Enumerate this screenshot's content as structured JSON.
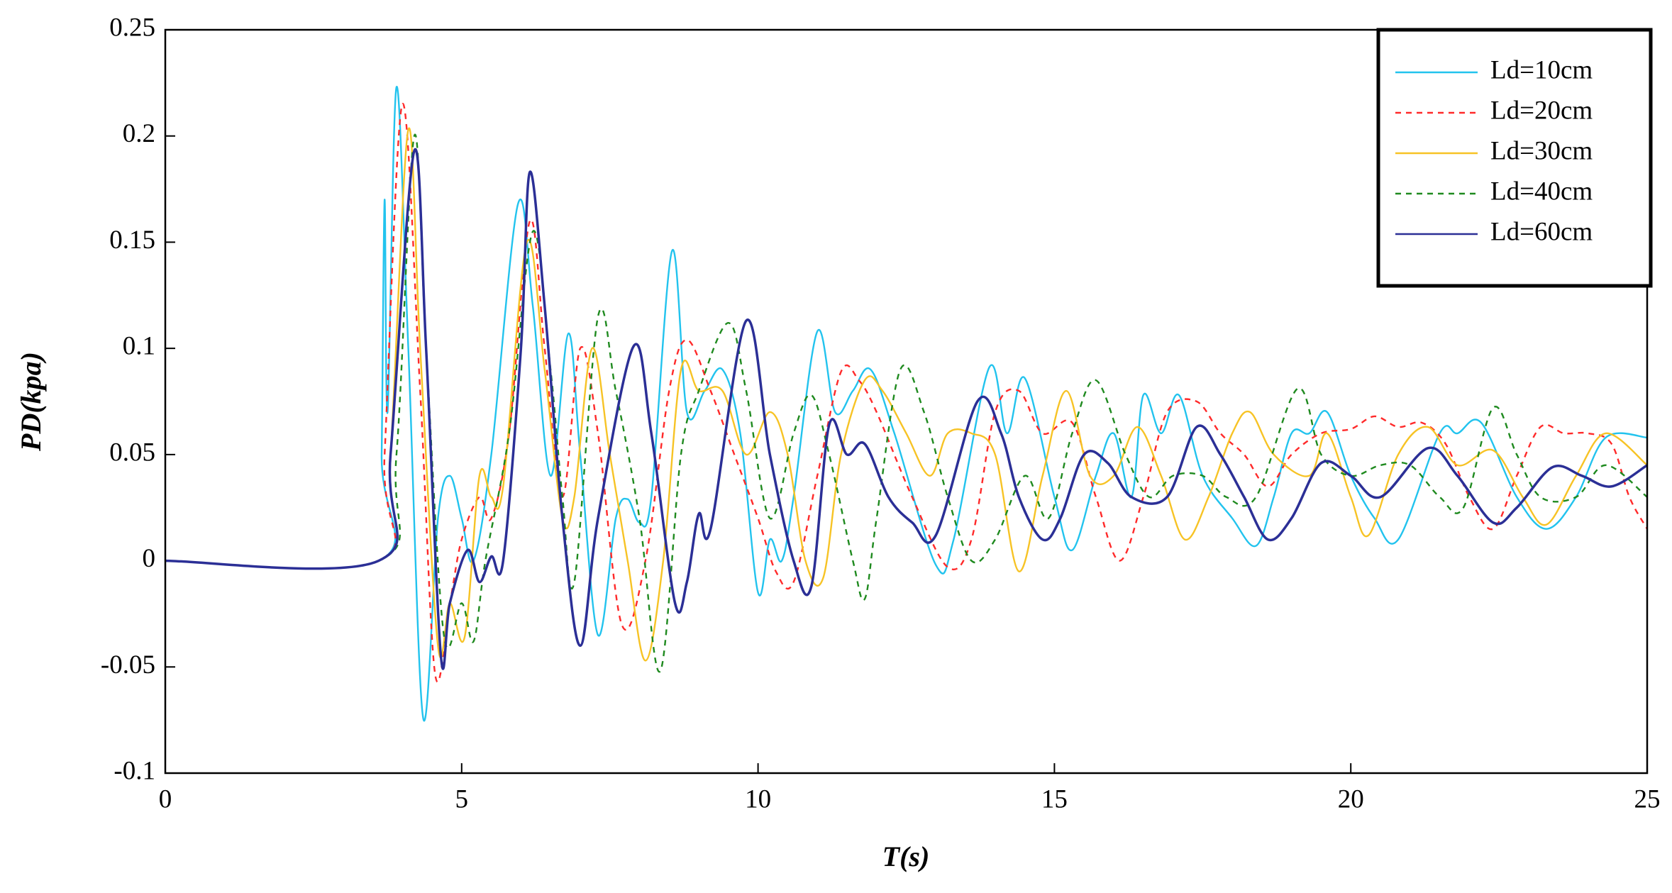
{
  "chart_data": {
    "type": "line",
    "xlabel": "T(s)",
    "ylabel": "PD(kpa)",
    "xlim": [
      0,
      25
    ],
    "xticks": [
      0,
      5,
      10,
      15,
      20,
      25
    ],
    "ylim": [
      -0.1,
      0.25
    ],
    "yticks": [
      -0.1,
      -0.05,
      0,
      0.05,
      0.1,
      0.15,
      0.2,
      0.25
    ],
    "legend": "upper right",
    "series": [
      {
        "name": "Ld=10cm",
        "color": "#22c3ee",
        "dash": "solid",
        "x": [
          0,
          3.6,
          3.65,
          3.7,
          3.75,
          3.9,
          4.1,
          4.35,
          4.6,
          4.8,
          5.0,
          5.2,
          5.5,
          5.95,
          6.2,
          6.5,
          6.8,
          7.0,
          7.3,
          7.6,
          7.8,
          8.0,
          8.2,
          8.55,
          8.8,
          9.1,
          9.4,
          9.7,
          10.0,
          10.2,
          10.4,
          10.6,
          11.0,
          11.3,
          11.6,
          11.9,
          12.3,
          13.0,
          13.3,
          13.9,
          14.2,
          14.5,
          15.0,
          15.3,
          15.7,
          16.0,
          16.3,
          16.5,
          16.8,
          17.1,
          17.5,
          18.0,
          18.4,
          18.7,
          19.0,
          19.3,
          19.6,
          20.0,
          20.4,
          20.8,
          21.5,
          21.8,
          22.2,
          22.8,
          23.3,
          23.8,
          24.3,
          25
        ],
        "values": [
          0,
          0,
          0.05,
          0.17,
          0.07,
          0.223,
          0.1,
          -0.074,
          0.02,
          0.04,
          0.02,
          0.0,
          0.05,
          0.168,
          0.12,
          0.04,
          0.107,
          0.05,
          -0.035,
          0.02,
          0.029,
          0.018,
          0.03,
          0.146,
          0.07,
          0.08,
          0.09,
          0.06,
          -0.015,
          0.01,
          0.0,
          0.03,
          0.108,
          0.07,
          0.08,
          0.09,
          0.06,
          -0.002,
          0.01,
          0.091,
          0.06,
          0.086,
          0.03,
          0.005,
          0.04,
          0.06,
          0.03,
          0.078,
          0.06,
          0.078,
          0.04,
          0.02,
          0.007,
          0.03,
          0.06,
          0.06,
          0.07,
          0.04,
          0.02,
          0.01,
          0.06,
          0.06,
          0.065,
          0.03,
          0.015,
          0.03,
          0.058,
          0.058
        ]
      },
      {
        "name": "Ld=20cm",
        "color": "#ff2a2a",
        "dash": "dashed",
        "x": [
          0,
          3.6,
          3.7,
          4.0,
          4.3,
          4.55,
          4.8,
          5.0,
          5.3,
          5.5,
          5.8,
          6.15,
          6.4,
          6.7,
          7.0,
          7.3,
          7.7,
          8.1,
          8.5,
          8.8,
          9.2,
          9.6,
          10.0,
          10.3,
          10.6,
          11.0,
          11.4,
          11.7,
          12.0,
          12.6,
          13.2,
          13.6,
          14.0,
          14.4,
          14.8,
          15.3,
          15.7,
          16.1,
          16.5,
          16.9,
          17.4,
          17.8,
          18.2,
          18.6,
          19.0,
          19.5,
          20.0,
          20.4,
          20.8,
          21.2,
          21.6,
          22.0,
          22.4,
          22.8,
          23.2,
          23.6,
          24.0,
          24.4,
          24.7,
          25
        ],
        "values": [
          0,
          0,
          0.05,
          0.215,
          0.08,
          -0.053,
          -0.02,
          0.01,
          0.03,
          0.02,
          0.06,
          0.16,
          0.1,
          0.03,
          0.1,
          0.06,
          -0.03,
          0.0,
          0.08,
          0.104,
          0.08,
          0.05,
          0.02,
          -0.005,
          -0.01,
          0.04,
          0.089,
          0.085,
          0.07,
          0.03,
          -0.003,
          0.01,
          0.07,
          0.08,
          0.06,
          0.065,
          0.03,
          0.0,
          0.03,
          0.07,
          0.075,
          0.06,
          0.05,
          0.035,
          0.05,
          0.06,
          0.062,
          0.068,
          0.063,
          0.065,
          0.055,
          0.03,
          0.015,
          0.04,
          0.063,
          0.06,
          0.06,
          0.055,
          0.03,
          0.015
        ]
      },
      {
        "name": "Ld=30cm",
        "color": "#f7c325",
        "dash": "solid",
        "x": [
          0,
          3.6,
          3.8,
          4.1,
          4.3,
          4.6,
          4.8,
          5.05,
          5.3,
          5.5,
          5.7,
          6.1,
          6.4,
          6.7,
          6.9,
          7.2,
          7.5,
          7.8,
          8.1,
          8.4,
          8.7,
          9.0,
          9.4,
          9.8,
          10.2,
          10.5,
          10.8,
          11.1,
          11.4,
          11.8,
          12.1,
          12.5,
          12.9,
          13.2,
          13.6,
          14.0,
          14.4,
          14.8,
          15.2,
          15.6,
          16.0,
          16.4,
          16.8,
          17.2,
          17.6,
          18.0,
          18.3,
          18.7,
          19.3,
          19.6,
          20.0,
          20.3,
          20.8,
          21.3,
          21.8,
          22.4,
          22.9,
          23.3,
          23.8,
          24.3,
          25
        ],
        "values": [
          0,
          0,
          0.05,
          0.203,
          0.1,
          -0.04,
          -0.02,
          -0.036,
          0.04,
          0.03,
          0.035,
          0.15,
          0.09,
          0.02,
          0.03,
          0.1,
          0.05,
          0.0,
          -0.047,
          0.0,
          0.09,
          0.08,
          0.08,
          0.05,
          0.07,
          0.05,
          0.0,
          -0.008,
          0.05,
          0.085,
          0.08,
          0.06,
          0.04,
          0.06,
          0.06,
          0.05,
          -0.005,
          0.04,
          0.08,
          0.04,
          0.04,
          0.063,
          0.04,
          0.01,
          0.03,
          0.06,
          0.07,
          0.05,
          0.04,
          0.06,
          0.03,
          0.012,
          0.05,
          0.063,
          0.045,
          0.052,
          0.03,
          0.017,
          0.04,
          0.06,
          0.045
        ]
      },
      {
        "name": "Ld=40cm",
        "color": "#1f8a1f",
        "dash": "dashed",
        "x": [
          0,
          3.6,
          3.9,
          4.2,
          4.4,
          4.7,
          5.0,
          5.2,
          5.4,
          5.8,
          6.2,
          6.5,
          6.7,
          6.9,
          7.3,
          7.6,
          8.0,
          8.35,
          8.7,
          9.0,
          9.5,
          9.8,
          10.2,
          10.6,
          10.9,
          11.2,
          11.6,
          11.8,
          12.0,
          12.4,
          12.8,
          13.2,
          13.6,
          14.0,
          14.5,
          14.9,
          15.3,
          15.7,
          16.2,
          16.6,
          17.0,
          17.5,
          17.9,
          18.4,
          19.1,
          19.5,
          20.0,
          20.5,
          21.0,
          21.5,
          21.9,
          22.4,
          22.8,
          23.2,
          23.8,
          24.3,
          25
        ],
        "values": [
          0,
          0,
          0.05,
          0.2,
          0.1,
          -0.035,
          -0.02,
          -0.038,
          0.0,
          0.06,
          0.155,
          0.09,
          0.03,
          -0.01,
          0.115,
          0.08,
          0.02,
          -0.052,
          0.05,
          0.08,
          0.112,
          0.08,
          0.02,
          0.06,
          0.078,
          0.05,
          0.0,
          -0.018,
          0.02,
          0.09,
          0.07,
          0.03,
          0.0,
          0.01,
          0.04,
          0.02,
          0.06,
          0.085,
          0.05,
          0.03,
          0.04,
          0.04,
          0.03,
          0.03,
          0.081,
          0.05,
          0.04,
          0.045,
          0.045,
          0.03,
          0.025,
          0.072,
          0.05,
          0.03,
          0.03,
          0.045,
          0.03
        ]
      },
      {
        "name": "Ld=60cm",
        "color": "#2b2f96",
        "dash": "solid",
        "x": [
          0,
          3.6,
          3.8,
          4.2,
          4.4,
          4.65,
          4.8,
          5.1,
          5.3,
          5.5,
          5.7,
          6.0,
          6.15,
          6.4,
          6.7,
          7.0,
          7.3,
          7.9,
          8.2,
          8.6,
          8.8,
          9.0,
          9.2,
          9.8,
          10.2,
          10.6,
          10.9,
          11.2,
          11.5,
          11.8,
          12.2,
          12.6,
          13.0,
          13.7,
          14.1,
          14.4,
          14.8,
          15.1,
          15.5,
          15.9,
          16.3,
          16.9,
          17.4,
          17.8,
          18.2,
          18.6,
          19.0,
          19.5,
          20.0,
          20.5,
          21.3,
          21.8,
          22.4,
          22.8,
          23.4,
          23.9,
          24.4,
          25
        ],
        "values": [
          0,
          0,
          0.05,
          0.193,
          0.1,
          -0.045,
          -0.02,
          0.005,
          -0.01,
          0.002,
          0.0,
          0.1,
          0.183,
          0.12,
          0.02,
          -0.04,
          0.02,
          0.101,
          0.06,
          -0.02,
          -0.01,
          0.022,
          0.015,
          0.113,
          0.05,
          0.0,
          -0.012,
          0.064,
          0.05,
          0.055,
          0.03,
          0.018,
          0.012,
          0.075,
          0.06,
          0.03,
          0.01,
          0.02,
          0.05,
          0.046,
          0.03,
          0.03,
          0.063,
          0.05,
          0.03,
          0.01,
          0.02,
          0.046,
          0.04,
          0.03,
          0.053,
          0.04,
          0.018,
          0.025,
          0.044,
          0.04,
          0.035,
          0.045
        ]
      }
    ]
  }
}
